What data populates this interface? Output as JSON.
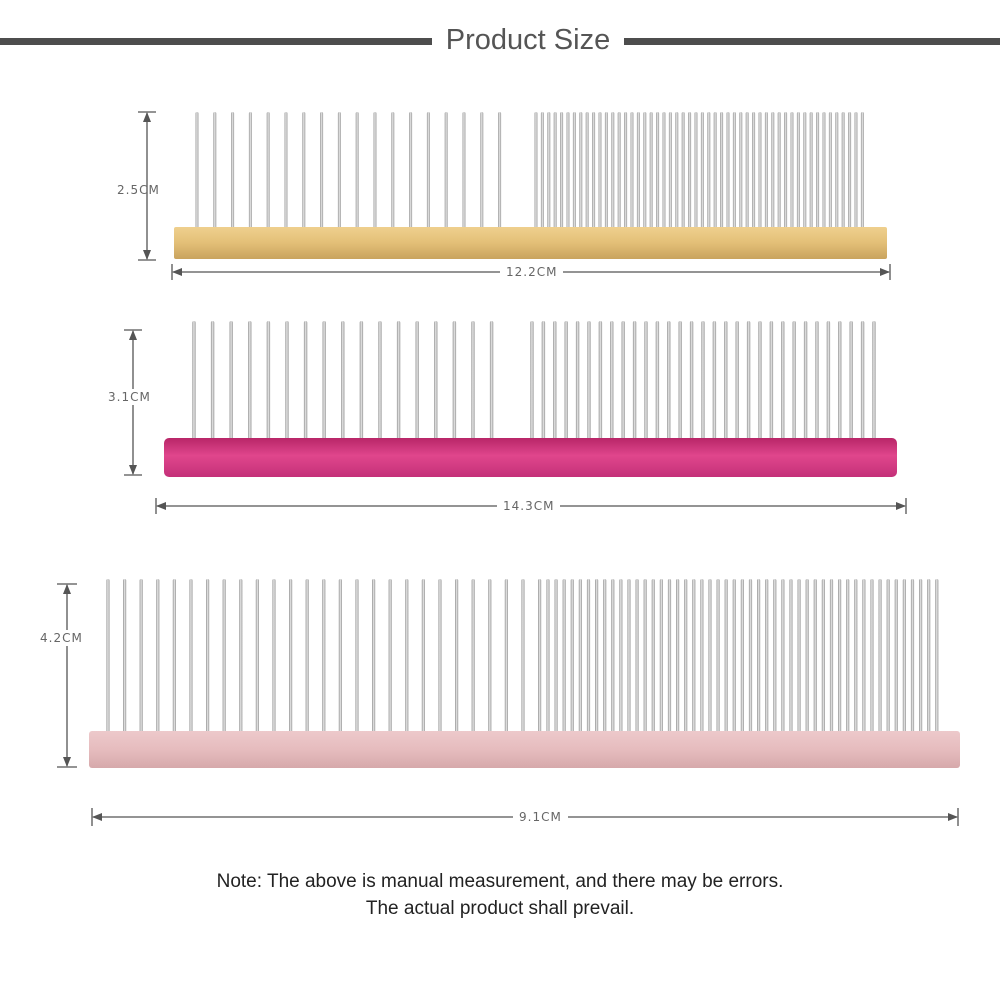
{
  "title": "Product Size",
  "colors": {
    "header_bar": "#4d4d4d",
    "pin": "#b8b8b8",
    "comb_gold": "#e3bf77",
    "comb_magenta": "#d33c82",
    "comb_pink": "#e6bcbe"
  },
  "combs": [
    {
      "name": "gold-comb",
      "height_label": "2.5CM",
      "width_label": "12.2CM",
      "color": "gold"
    },
    {
      "name": "magenta-comb",
      "height_label": "3.1CM",
      "width_label": "14.3CM",
      "color": "magenta"
    },
    {
      "name": "pink-comb",
      "height_label": "4.2CM",
      "width_label": "9.1CM",
      "color": "pink"
    }
  ],
  "note": {
    "line1": "Note: The above is manual measurement, and there may be errors.",
    "line2": "The actual product shall prevail."
  }
}
